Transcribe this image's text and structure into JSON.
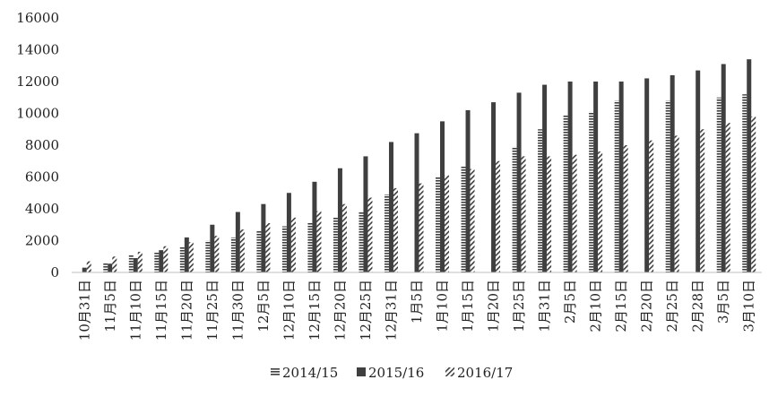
{
  "chart_data": {
    "type": "bar",
    "title": "",
    "xlabel": "",
    "ylabel": "",
    "ylim": [
      0,
      16000
    ],
    "yticks": [
      0,
      2000,
      4000,
      6000,
      8000,
      10000,
      12000,
      14000,
      16000
    ],
    "grid": false,
    "legend_position": "bottom",
    "categories": [
      "10月31日",
      "11月5日",
      "11月10日",
      "11月15日",
      "11月20日",
      "11月25日",
      "11月30日",
      "12月5日",
      "12月10日",
      "12月15日",
      "12月20日",
      "12月25日",
      "12月31日",
      "1月5日",
      "1月10日",
      "1月15日",
      "1月20日",
      "1月25日",
      "1月31日",
      "2月5日",
      "2月10日",
      "2月15日",
      "2月20日",
      "2月25日",
      "2月28日",
      "3月5日",
      "3月10日"
    ],
    "series": [
      {
        "name": "2014/15",
        "pattern": "horizontal-lines",
        "values": [
          0,
          600,
          1100,
          1300,
          1600,
          2000,
          2200,
          2600,
          2900,
          3100,
          3500,
          3800,
          4900,
          null,
          6000,
          6700,
          null,
          7900,
          9000,
          9900,
          10100,
          10800,
          null,
          10800,
          null,
          11000,
          11200
        ]
      },
      {
        "name": "2015/16",
        "pattern": "solid",
        "values": [
          300,
          550,
          900,
          1400,
          2200,
          3000,
          3800,
          4300,
          5000,
          5700,
          6550,
          7300,
          8200,
          8750,
          9500,
          10200,
          10700,
          11300,
          11800,
          12000,
          12000,
          12000,
          12200,
          12400,
          12700,
          13100,
          13400
        ]
      },
      {
        "name": "2016/17",
        "pattern": "diagonal-lines",
        "values": [
          700,
          1000,
          1300,
          1650,
          1900,
          2300,
          2700,
          3100,
          3450,
          3850,
          4300,
          4700,
          5300,
          5600,
          6100,
          6500,
          7000,
          7300,
          7300,
          7400,
          7600,
          8000,
          8300,
          8600,
          9000,
          9400,
          9800
        ]
      }
    ],
    "colors": {
      "bar": "#3f3f3f",
      "axis": "#bfbfbf",
      "text": "#222222"
    }
  }
}
